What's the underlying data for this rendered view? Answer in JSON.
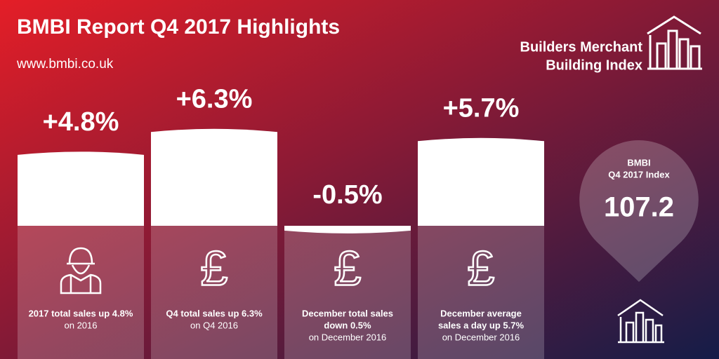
{
  "header": {
    "title": "BMBI Report Q4 2017 Highlights",
    "url": "www.bmbi.co.uk"
  },
  "logo": {
    "lines": [
      "Builders Merchant",
      "Building Index"
    ]
  },
  "panels": [
    {
      "value": 4.8,
      "value_label": "+4.8%",
      "caption": [
        "2017 total sales up 4.8%"
      ],
      "subcaption": "on 2016"
    },
    {
      "value": 6.3,
      "value_label": "+6.3%",
      "icon": "£",
      "caption": [
        "Q4 total sales up 6.3%"
      ],
      "subcaption": "on Q4 2016"
    },
    {
      "value": -0.5,
      "value_label": "-0.5%",
      "icon": "£",
      "caption": [
        "December total sales",
        "down 0.5%"
      ],
      "subcaption": "on December 2016"
    },
    {
      "value": 5.7,
      "value_label": "+5.7%",
      "icon": "£",
      "caption": [
        "December average",
        "sales a day up 5.7%"
      ],
      "subcaption": "on December 2016"
    }
  ],
  "index": {
    "label": [
      "BMBI",
      "Q4 2017 Index"
    ],
    "value": "107.2"
  }
}
